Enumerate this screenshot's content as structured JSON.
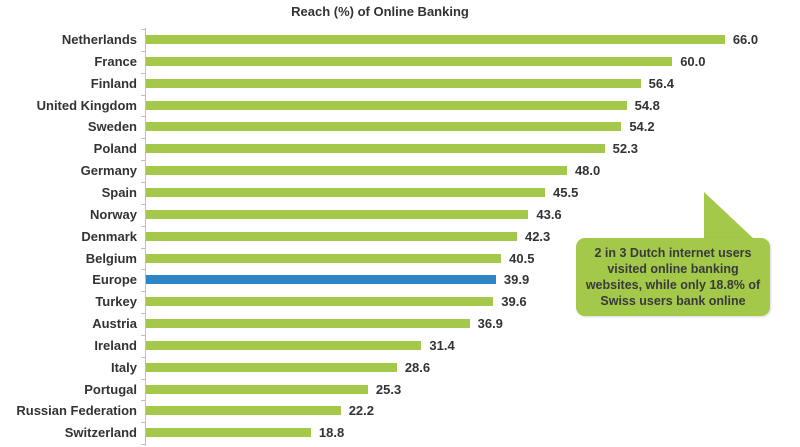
{
  "chart_data": {
    "type": "bar",
    "orientation": "horizontal",
    "title": "Reach (%) of Online Banking",
    "xlabel": "",
    "ylabel": "",
    "xlim": [
      0,
      70
    ],
    "grid": false,
    "legend": null,
    "categories": [
      "Netherlands",
      "France",
      "Finland",
      "United Kingdom",
      "Sweden",
      "Poland",
      "Germany",
      "Spain",
      "Norway",
      "Denmark",
      "Belgium",
      "Europe",
      "Turkey",
      "Austria",
      "Ireland",
      "Italy",
      "Portugal",
      "Russian Federation",
      "Switzerland"
    ],
    "values": [
      66.0,
      60.0,
      56.4,
      54.8,
      54.2,
      52.3,
      48.0,
      45.5,
      43.6,
      42.3,
      40.5,
      39.9,
      39.6,
      36.9,
      31.4,
      28.6,
      25.3,
      22.2,
      18.8
    ],
    "value_labels": [
      "66.0",
      "60.0",
      "56.4",
      "54.8",
      "54.2",
      "52.3",
      "48.0",
      "45.5",
      "43.6",
      "42.3",
      "40.5",
      "39.9",
      "39.6",
      "36.9",
      "31.4",
      "28.6",
      "25.3",
      "22.2",
      "18.8"
    ],
    "highlight": "Europe",
    "colors": {
      "default": "#a3c84a",
      "highlight": "#2e86c6"
    },
    "annotations": [
      {
        "text": "2 in 3 Dutch internet users visited online banking websites, while only 18.8% of Swiss users bank online",
        "type": "callout"
      }
    ]
  },
  "callout": {
    "line1": "2 in 3 Dutch internet users",
    "line2": "visited online banking",
    "line3": "websites, while only 18.8% of",
    "line4": "Swiss users bank online"
  }
}
